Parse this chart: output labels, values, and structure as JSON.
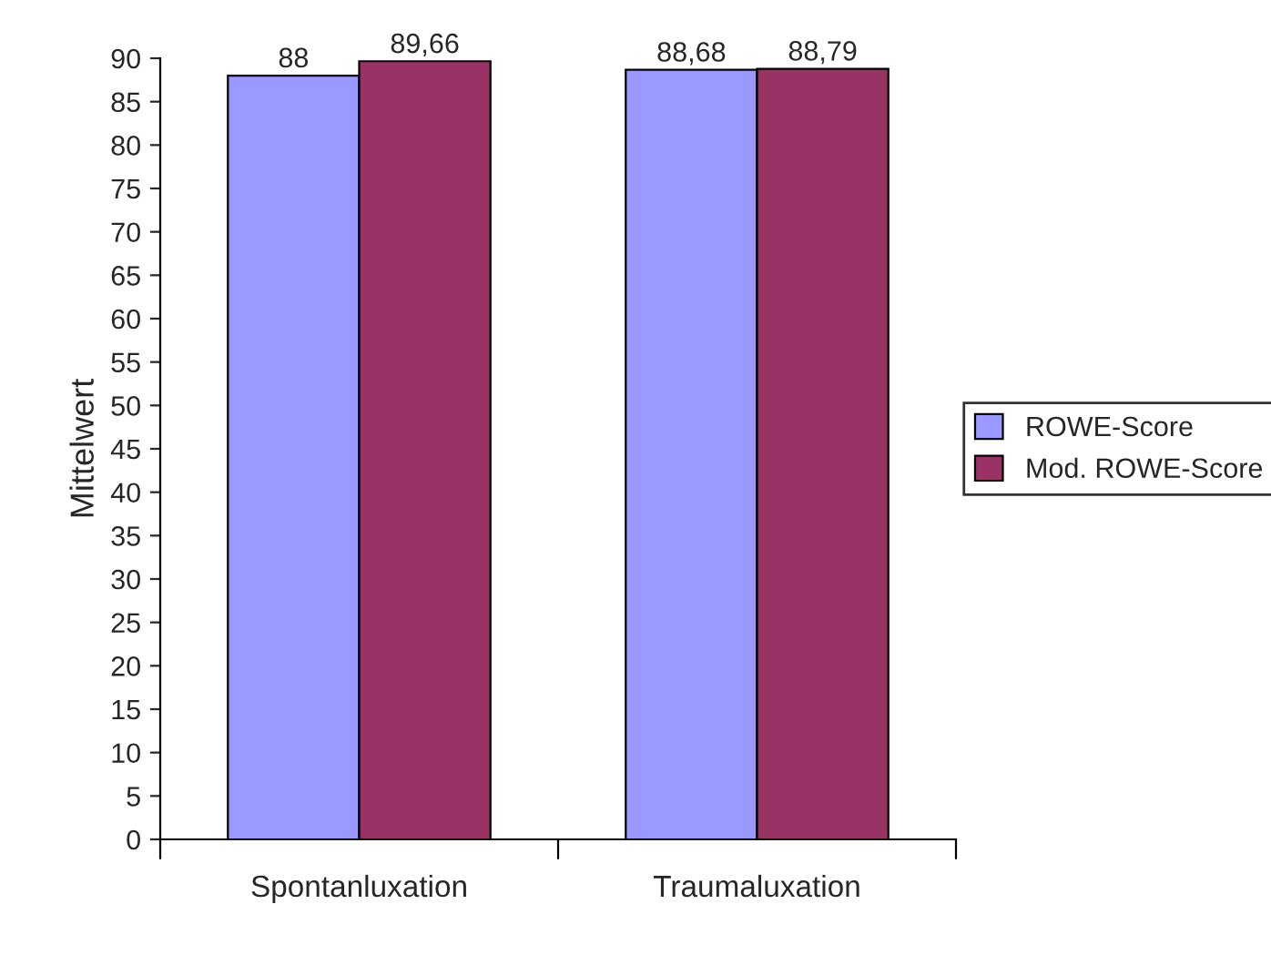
{
  "chart_data": {
    "type": "bar",
    "ylabel": "Mittelwert",
    "categories": [
      "Spontanluxation",
      "Traumaluxation"
    ],
    "series": [
      {
        "name": "ROWE-Score",
        "color": "#9999ff",
        "values": [
          88,
          88.68
        ],
        "value_labels": [
          "88",
          "88,68"
        ]
      },
      {
        "name": "Mod. ROWE-Score",
        "color": "#993366",
        "values": [
          89.66,
          88.79
        ],
        "value_labels": [
          "89,66",
          "88,79"
        ]
      }
    ],
    "ylim": [
      0,
      90
    ],
    "yticks": [
      0,
      5,
      10,
      15,
      20,
      25,
      30,
      35,
      40,
      45,
      50,
      55,
      60,
      65,
      70,
      75,
      80,
      85,
      90
    ],
    "grid": false,
    "legend": "right"
  }
}
